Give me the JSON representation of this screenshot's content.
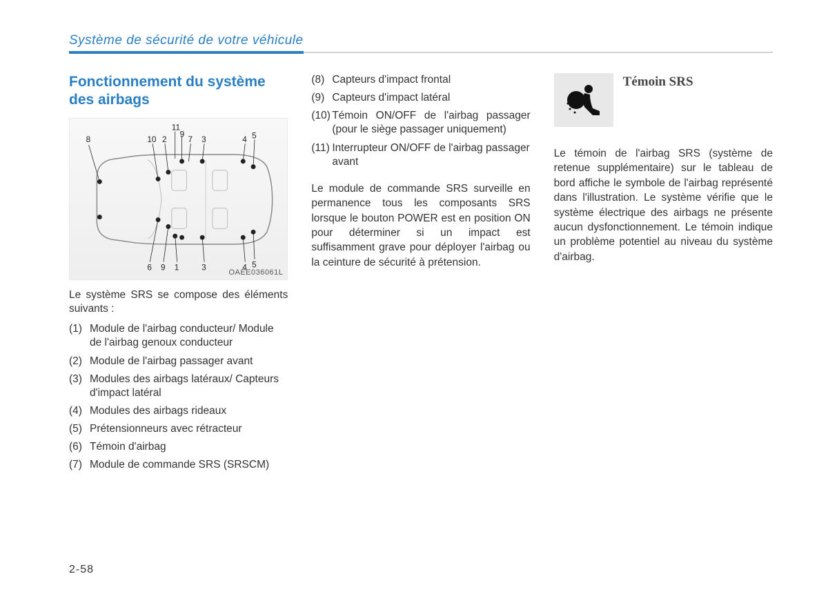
{
  "header": {
    "title": "Système de sécurité de votre véhicule",
    "underline_blue_color": "#2a7fc4",
    "underline_gray_color": "#d0d0d0"
  },
  "page_number": "2-58",
  "col1": {
    "section_title": "Fonctionnement du système des airbags",
    "diagram_code": "OAEE036061L",
    "labels": [
      "8",
      "11",
      "9",
      "10",
      "2",
      "7",
      "3",
      "4",
      "5",
      "6",
      "9",
      "1",
      "3",
      "4",
      "5"
    ],
    "intro": "Le système SRS se compose des éléments suivants :",
    "components": [
      {
        "n": "(1)",
        "t": "Module de l'airbag conducteur/ Module de l'airbag genoux conducteur"
      },
      {
        "n": "(2)",
        "t": "Module de l'airbag passager avant"
      },
      {
        "n": "(3)",
        "t": "Modules des airbags latéraux/ Capteurs d'impact latéral"
      },
      {
        "n": "(4)",
        "t": "Modules des airbags rideaux"
      },
      {
        "n": "(5)",
        "t": "Prétensionneurs avec rétracteur"
      },
      {
        "n": "(6)",
        "t": "Témoin d'airbag"
      },
      {
        "n": "(7)",
        "t": "Module de commande SRS (SRSCM)",
        "justify": true
      }
    ]
  },
  "col2": {
    "components": [
      {
        "n": "(8)",
        "t": "Capteurs d'impact frontal"
      },
      {
        "n": "(9)",
        "t": "Capteurs d'impact latéral"
      },
      {
        "n": "(10)",
        "t": "Témoin ON/OFF de l'airbag passager (pour le siège passager uniquement)",
        "justify": true
      },
      {
        "n": "(11)",
        "t": "Interrupteur ON/OFF de l'airbag passager avant"
      }
    ],
    "body": "Le module de commande SRS surveille en permanence tous les composants SRS lorsque le bouton POWER est en position ON pour déterminer si un impact est suffisamment grave pour déployer l'airbag ou la ceinture de sécurité à prétension."
  },
  "col3": {
    "srs_heading": "Témoin SRS",
    "body": "Le témoin de l'airbag SRS (système de retenue supplémentaire) sur le tableau de bord affiche le symbole de l'airbag représenté dans l'illustration. Le système vérifie que le système électrique des airbags ne présente aucun dysfonctionnement. Le témoin indique un problème potentiel au niveau du système d'airbag."
  },
  "colors": {
    "title_blue": "#2a7fc4",
    "text_color": "#333333",
    "icon_bg": "#e8e8e8"
  }
}
